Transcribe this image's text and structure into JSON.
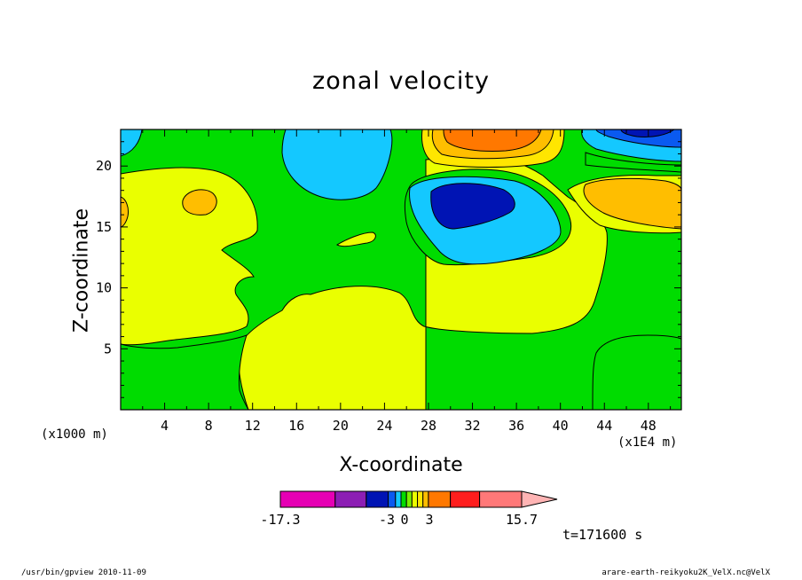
{
  "chart_data": {
    "type": "heatmap",
    "title": "zonal velocity",
    "xlabel": "X-coordinate",
    "ylabel": "Z-coordinate",
    "x_unit_note": "(x1000 m)",
    "x_scale_note": "(x1E4 m)",
    "xlim": [
      0,
      51
    ],
    "ylim": [
      0,
      23
    ],
    "xticks": [
      "4",
      "8",
      "12",
      "16",
      "20",
      "24",
      "28",
      "32",
      "36",
      "40",
      "44",
      "48"
    ],
    "yticks": [
      "5",
      "10",
      "15",
      "20"
    ],
    "colorbar": {
      "range": [
        -17.3,
        15.7
      ],
      "tick_labels": [
        "-17.3",
        "-3",
        "0",
        "3",
        "15.7"
      ],
      "colors": [
        "#e600b4",
        "#8c1eb4",
        "#0014b4",
        "#0a5af0",
        "#14c8ff",
        "#00dc00",
        "#78f000",
        "#eaff00",
        "#ffe600",
        "#ffbe00",
        "#ff7800",
        "#ff1e1e",
        "#ff7878",
        "#ffb4b4"
      ]
    },
    "time_label": "t=171600 s"
  },
  "footer": {
    "left": "/usr/bin/gpview  2010-11-09",
    "right": "arare-earth-reikyoku2K_VelX.nc@VelX"
  }
}
